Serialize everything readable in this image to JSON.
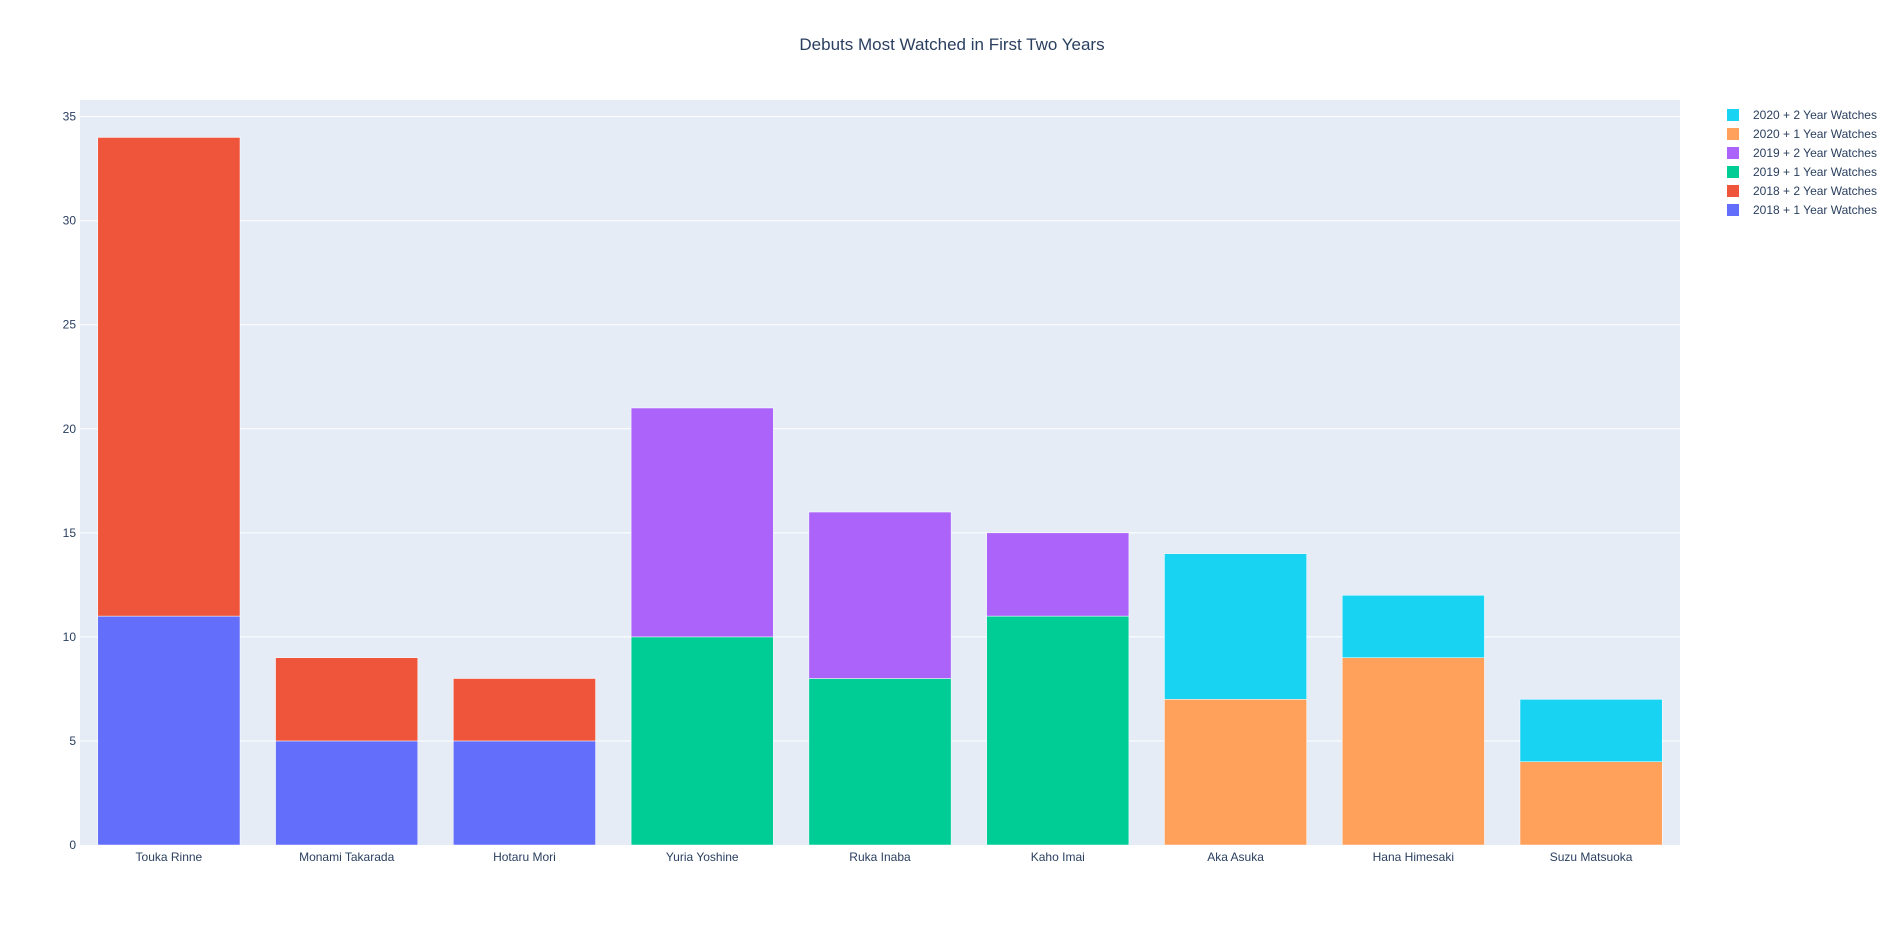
{
  "chart_data": {
    "type": "bar",
    "barmode": "stack",
    "title": "Debuts Most Watched in First Two Years",
    "xlabel": "",
    "ylabel": "",
    "categories": [
      "Touka Rinne",
      "Monami Takarada",
      "Hotaru Mori",
      "Yuria Yoshine",
      "Ruka Inaba",
      "Kaho Imai",
      "Aka Asuka",
      "Hana Himesaki",
      "Suzu Matsuoka"
    ],
    "ylim": [
      0,
      35.8
    ],
    "yticks": [
      "0",
      "5",
      "10",
      "15",
      "20",
      "25",
      "30",
      "35"
    ],
    "grid": true,
    "legend_position": "top-right",
    "series": [
      {
        "name": "2018 + 1 Year Watches",
        "color": "#636efa",
        "values": [
          11,
          5,
          5,
          0,
          0,
          0,
          0,
          0,
          0
        ]
      },
      {
        "name": "2018 + 2 Year Watches",
        "color": "#ef553b",
        "values": [
          23,
          4,
          3,
          0,
          0,
          0,
          0,
          0,
          0
        ]
      },
      {
        "name": "2019 + 1 Year Watches",
        "color": "#00cc96",
        "values": [
          0,
          0,
          0,
          10,
          8,
          11,
          0,
          0,
          0
        ]
      },
      {
        "name": "2019 + 2 Year Watches",
        "color": "#ab63fa",
        "values": [
          0,
          0,
          0,
          11,
          8,
          4,
          0,
          0,
          0
        ]
      },
      {
        "name": "2020 + 1 Year Watches",
        "color": "#ffa15a",
        "values": [
          0,
          0,
          0,
          0,
          0,
          0,
          7,
          9,
          4
        ]
      },
      {
        "name": "2020 + 2 Year Watches",
        "color": "#19d3f3",
        "values": [
          0,
          0,
          0,
          0,
          0,
          0,
          7,
          3,
          3
        ]
      }
    ],
    "legend_order": [
      5,
      4,
      3,
      2,
      1,
      0
    ],
    "colors": {
      "plot_bg": "#e5ecf6",
      "grid": "#ffffff",
      "text": "#2a3f5f",
      "paper_bg": "#ffffff"
    }
  }
}
